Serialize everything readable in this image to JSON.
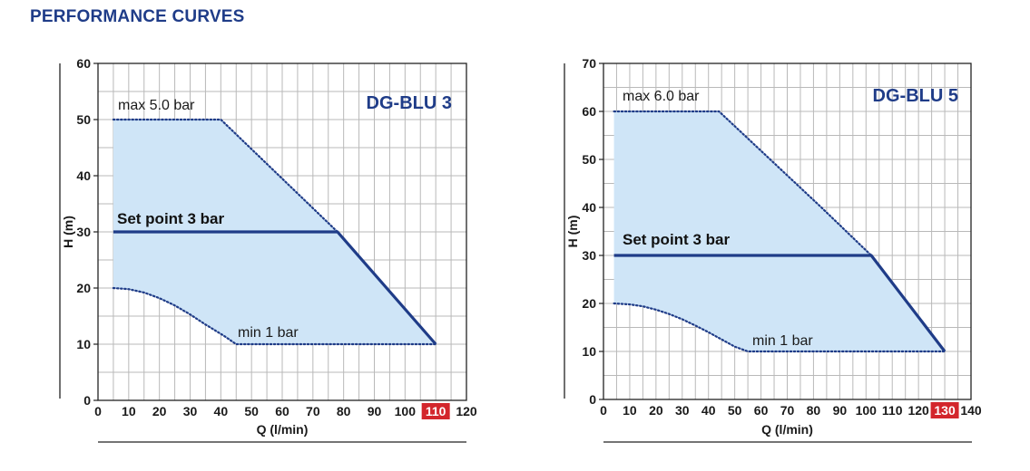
{
  "title": "PERFORMANCE CURVES",
  "colors": {
    "curve": "#1f3c88",
    "region": "#cfe5f7",
    "grid": "#b9b9b9",
    "highlight": "#d3262c",
    "title": "#1f3c88"
  },
  "chart_data": [
    {
      "type": "area",
      "model": "DG-BLU 3",
      "xlabel": "Q (l/min)",
      "ylabel": "H (m)",
      "xlim": [
        0,
        120
      ],
      "ylim": [
        0,
        60
      ],
      "xticks": [
        0,
        10,
        20,
        30,
        40,
        50,
        60,
        70,
        80,
        90,
        100,
        110,
        120
      ],
      "xtick_labels": [
        "0",
        "10",
        "20",
        "30",
        "40",
        "50",
        "60",
        "70",
        "80",
        "90",
        "100",
        "110",
        "120"
      ],
      "yticks": [
        0,
        10,
        20,
        30,
        40,
        50,
        60
      ],
      "ytick_labels": [
        "0",
        "10",
        "20",
        "30",
        "40",
        "50",
        "60"
      ],
      "highlight_x": 110,
      "grid": true,
      "series": [
        {
          "label": "max 5.0 bar",
          "style": "dotted",
          "x": [
            5,
            40,
            78
          ],
          "y": [
            50,
            50,
            30
          ]
        },
        {
          "label": "min 1 bar",
          "style": "dotted",
          "x": [
            5,
            10,
            15,
            20,
            25,
            30,
            35,
            41,
            45,
            110
          ],
          "y": [
            20,
            19.8,
            19.2,
            18.2,
            16.9,
            15.3,
            13.5,
            11.5,
            10,
            10
          ]
        },
        {
          "label": "Set point 3 bar",
          "style": "solid",
          "x": [
            5,
            78,
            110
          ],
          "y": [
            30,
            30,
            10
          ]
        }
      ]
    },
    {
      "type": "area",
      "model": "DG-BLU 5",
      "xlabel": "Q (l/min)",
      "ylabel": "H (m)",
      "xlim": [
        0,
        140
      ],
      "ylim": [
        0,
        70
      ],
      "xticks": [
        0,
        10,
        20,
        30,
        40,
        50,
        60,
        70,
        80,
        90,
        100,
        110,
        120,
        130,
        140
      ],
      "xtick_labels": [
        "0",
        "10",
        "20",
        "30",
        "40",
        "50",
        "60",
        "70",
        "80",
        "90",
        "100",
        "110",
        "120",
        "130",
        "140"
      ],
      "yticks": [
        0,
        10,
        20,
        30,
        40,
        50,
        60,
        70
      ],
      "ytick_labels": [
        "0",
        "10",
        "20",
        "30",
        "40",
        "50",
        "60",
        "70"
      ],
      "highlight_x": 130,
      "grid": true,
      "series": [
        {
          "label": "max 6.0 bar",
          "style": "dotted",
          "x": [
            4,
            44,
            83,
            102
          ],
          "y": [
            60,
            60,
            40,
            30
          ]
        },
        {
          "label": "min 1 bar",
          "style": "dotted",
          "x": [
            4,
            10,
            15,
            20,
            25,
            30,
            35,
            40,
            45,
            50,
            55,
            130
          ],
          "y": [
            20,
            19.8,
            19.4,
            18.7,
            17.8,
            16.7,
            15.4,
            14.0,
            12.5,
            11.0,
            10,
            10
          ]
        },
        {
          "label": "Set point 3 bar",
          "style": "solid",
          "x": [
            4,
            102,
            130
          ],
          "y": [
            30,
            30,
            10
          ]
        }
      ]
    }
  ]
}
